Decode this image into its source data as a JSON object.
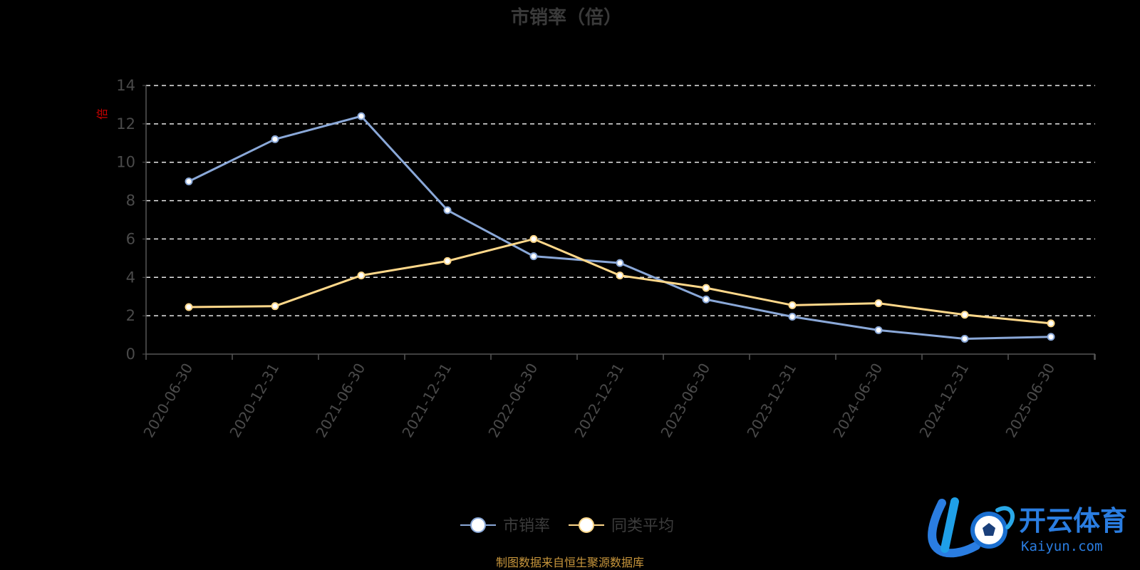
{
  "colors": {
    "background": "#000000",
    "series1": "#8aa8d8",
    "series2": "#ffd88a",
    "grid": "#e8e8e8",
    "axis": "#555555",
    "text": "#4a4a4a",
    "source": "#c8963c",
    "unit": "#cc0000",
    "brand": "#2a7de1"
  },
  "brand": {
    "cn": "开云体育",
    "en": "Kaiyun.com",
    "logo_icon": "kaiyun-soccer-logo-icon"
  },
  "unit_label": "倍",
  "source": "制图数据来自恒生聚源数据库",
  "chart_data": {
    "type": "line",
    "title": "市销率（倍）",
    "xlabel": "",
    "ylabel": "倍",
    "ylim": [
      0,
      14
    ],
    "yticks": [
      0,
      2,
      4,
      6,
      8,
      10,
      12,
      14
    ],
    "grid": true,
    "legend_position": "bottom",
    "categories": [
      "2020-06-30",
      "2020-12-31",
      "2021-06-30",
      "2021-12-31",
      "2022-06-30",
      "2022-12-31",
      "2023-06-30",
      "2023-12-31",
      "2024-06-30",
      "2024-12-31",
      "2025-06-30"
    ],
    "series": [
      {
        "name": "市销率",
        "values": [
          9.0,
          11.2,
          12.4,
          7.5,
          5.1,
          4.75,
          2.85,
          1.95,
          1.25,
          0.8,
          0.9
        ]
      },
      {
        "name": "同类平均",
        "values": [
          2.45,
          2.5,
          4.1,
          4.85,
          6.0,
          4.1,
          3.45,
          2.55,
          2.65,
          2.05,
          1.6
        ]
      }
    ]
  }
}
